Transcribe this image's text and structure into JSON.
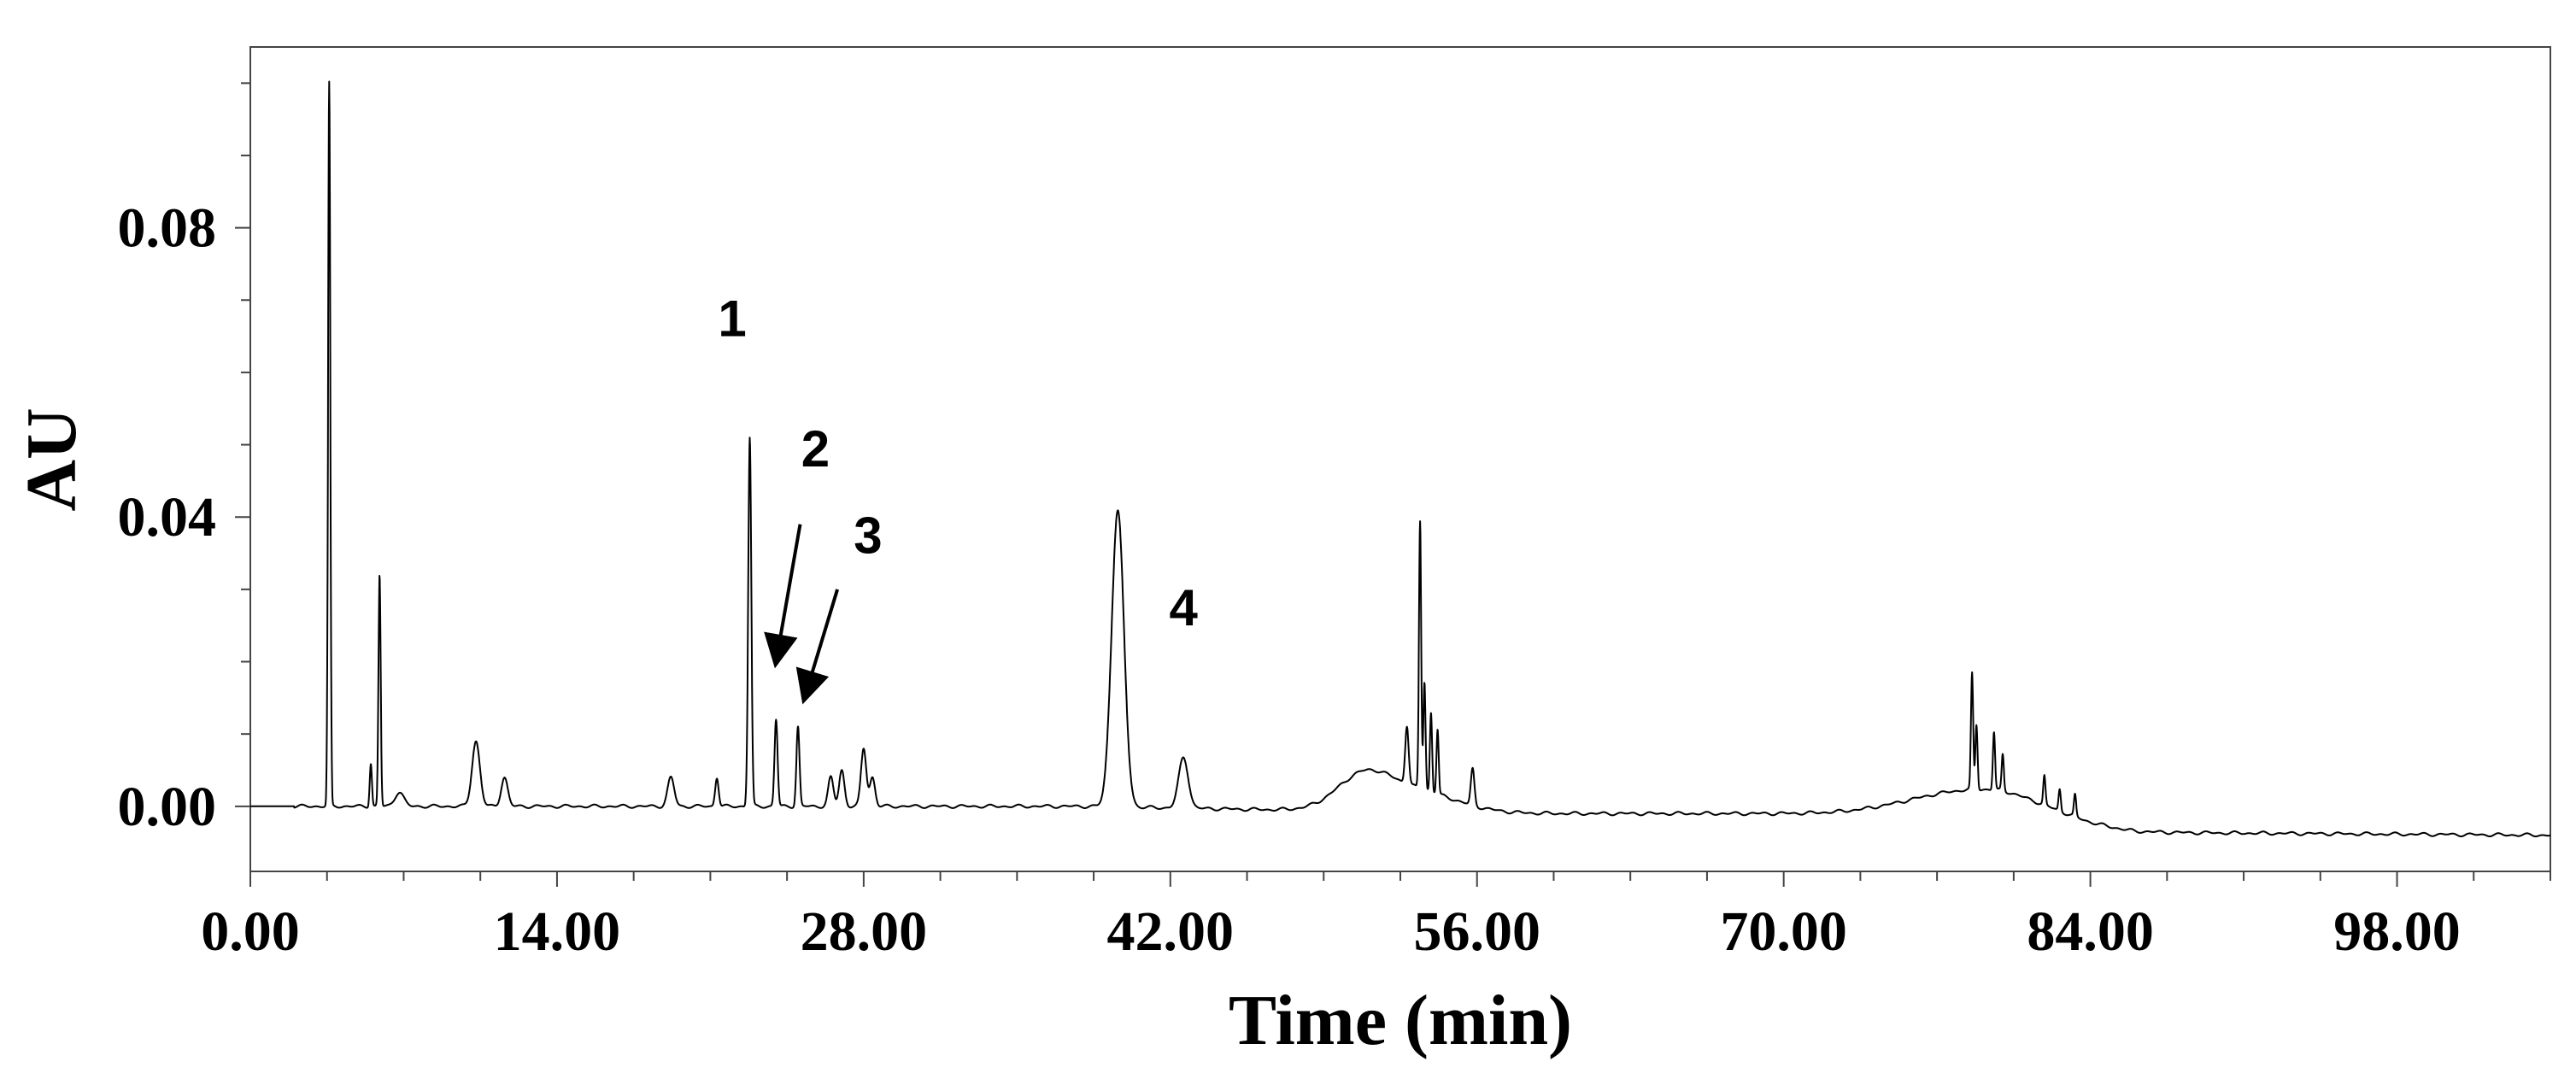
{
  "chart_data": {
    "type": "line",
    "title": "",
    "xlabel": "Time (min)",
    "ylabel": "AU",
    "xlim": [
      0,
      105
    ],
    "ylim": [
      -0.009,
      0.105
    ],
    "x_ticks": [
      0,
      14,
      28,
      42,
      56,
      70,
      84,
      98
    ],
    "x_tick_labels": [
      "0.00",
      "14.00",
      "28.00",
      "42.00",
      "56.00",
      "70.00",
      "84.00",
      "98.00"
    ],
    "y_ticks": [
      0,
      0.04,
      0.08
    ],
    "y_tick_labels": [
      "0.00",
      "0.04",
      "0.08"
    ],
    "grid": false,
    "legend": "none",
    "line_color": "#000000",
    "series": [
      {
        "peaks": [
          {
            "t": 3.6,
            "h": 0.1,
            "w": 0.05
          },
          {
            "t": 5.5,
            "h": 0.006,
            "w": 0.05
          },
          {
            "t": 5.9,
            "h": 0.032,
            "w": 0.05
          },
          {
            "t": 6.8,
            "h": 0.002,
            "w": 0.2
          },
          {
            "t": 10.3,
            "h": 0.009,
            "w": 0.18
          },
          {
            "t": 11.6,
            "h": 0.004,
            "w": 0.15
          },
          {
            "t": 19.2,
            "h": 0.004,
            "w": 0.15
          },
          {
            "t": 21.3,
            "h": 0.004,
            "w": 0.08
          },
          {
            "t": 22.8,
            "h": 0.051,
            "w": 0.07
          },
          {
            "t": 24.0,
            "h": 0.012,
            "w": 0.07
          },
          {
            "t": 25.0,
            "h": 0.011,
            "w": 0.07
          },
          {
            "t": 26.5,
            "h": 0.004,
            "w": 0.12
          },
          {
            "t": 27.0,
            "h": 0.005,
            "w": 0.12
          },
          {
            "t": 28.0,
            "h": 0.008,
            "w": 0.12
          },
          {
            "t": 28.4,
            "h": 0.004,
            "w": 0.12
          },
          {
            "t": 39.6,
            "h": 0.041,
            "w": 0.28
          },
          {
            "t": 42.6,
            "h": 0.007,
            "w": 0.22
          },
          {
            "t": 52.8,
            "h": 0.008,
            "w": 0.08
          },
          {
            "t": 53.4,
            "h": 0.037,
            "w": 0.05
          },
          {
            "t": 53.6,
            "h": 0.015,
            "w": 0.05
          },
          {
            "t": 53.9,
            "h": 0.011,
            "w": 0.05
          },
          {
            "t": 54.2,
            "h": 0.009,
            "w": 0.05
          },
          {
            "t": 55.8,
            "h": 0.005,
            "w": 0.08
          },
          {
            "t": 78.6,
            "h": 0.016,
            "w": 0.05
          },
          {
            "t": 78.8,
            "h": 0.009,
            "w": 0.05
          },
          {
            "t": 79.6,
            "h": 0.008,
            "w": 0.05
          },
          {
            "t": 80.0,
            "h": 0.005,
            "w": 0.05
          },
          {
            "t": 81.9,
            "h": 0.004,
            "w": 0.05
          },
          {
            "t": 82.6,
            "h": 0.003,
            "w": 0.05
          },
          {
            "t": 83.3,
            "h": 0.003,
            "w": 0.05
          }
        ],
        "humps": [
          {
            "t": 50.8,
            "h": 0.004,
            "w": 1.2
          },
          {
            "t": 53.0,
            "h": 0.003,
            "w": 2.0
          },
          {
            "t": 77.5,
            "h": 0.002,
            "w": 2.5
          },
          {
            "t": 80.5,
            "h": 0.002,
            "w": 2.5
          }
        ],
        "baseline": [
          [
            0,
            0.0
          ],
          [
            38,
            0.0
          ],
          [
            56,
            -0.001
          ],
          [
            75,
            -0.001
          ],
          [
            80,
            -0.001
          ],
          [
            84,
            -0.003
          ],
          [
            86,
            -0.0036
          ],
          [
            105,
            -0.004
          ]
        ]
      }
    ],
    "annotations": [
      {
        "label": "1",
        "x": 22.0,
        "y": 0.065
      },
      {
        "label": "2",
        "x": 25.8,
        "y": 0.047,
        "arrow_from": [
          25.1,
          0.039
        ],
        "arrow_to": [
          24.0,
          0.02
        ]
      },
      {
        "label": "3",
        "x": 28.2,
        "y": 0.035,
        "arrow_from": [
          26.8,
          0.03
        ],
        "arrow_to": [
          25.3,
          0.015
        ]
      },
      {
        "label": "4",
        "x": 42.6,
        "y": 0.025
      }
    ]
  }
}
